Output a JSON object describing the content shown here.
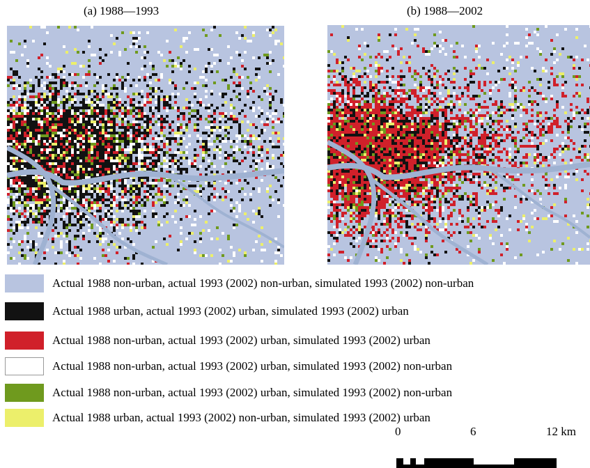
{
  "panels": [
    {
      "id": "a",
      "title": "(a) 1988—1993"
    },
    {
      "id": "b",
      "title": "(b) 1988—2002"
    }
  ],
  "legend": [
    {
      "color": "#b8c4e0",
      "label": "Actual 1988 non-urban, actual 1993 (2002) non-urban, simulated 1993 (2002) non-urban"
    },
    {
      "color": "#121212",
      "label": "Actual 1988 urban, actual 1993 (2002) urban, simulated 1993 (2002) urban"
    },
    {
      "color": "#d0202a",
      "label": "Actual 1988 non-urban, actual 1993 (2002) urban, simulated 1993 (2002) urban"
    },
    {
      "color": "#ffffff",
      "label": "Actual 1988 non-urban, actual 1993 (2002) urban, simulated 1993 (2002) non-urban"
    },
    {
      "color": "#6f9a1e",
      "label": "Actual 1988 non-urban, actual 1993 (2002) urban, simulated 1993 (2002) non-urban"
    },
    {
      "color": "#ecef6b",
      "label": "Actual 1988 urban, actual 1993 (2002) non-urban, simulated 1993 (2002) urban"
    }
  ],
  "scale": {
    "ticks": [
      "0",
      "6",
      "12 km"
    ]
  },
  "colors": {
    "water": "#a7b9d8",
    "river": "#9fb2d2",
    "swatch_border": "#999999"
  }
}
